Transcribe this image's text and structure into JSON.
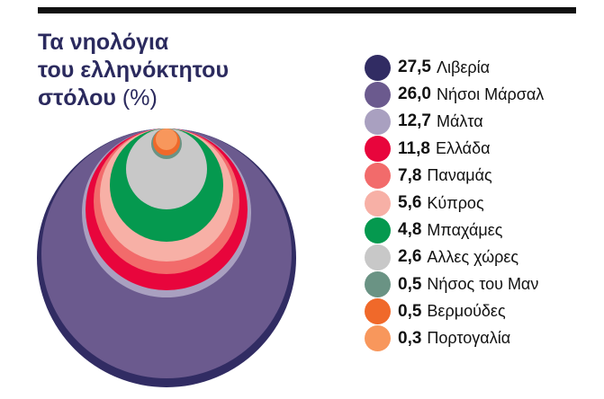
{
  "title": {
    "line1": "Τα νηολόγια",
    "line2": "του ελληνόκτητου",
    "line3": "στόλου",
    "line3_suffix": "(%)"
  },
  "chart_data": {
    "type": "nested-circles",
    "title": "Τα νηολόγια του ελληνόκτητου στόλου (%)",
    "legend_position": "right",
    "items": [
      {
        "label": "Λιβερία",
        "value": 27.5,
        "display": "27,5",
        "color": "#312c63"
      },
      {
        "label": "Νήσοι Μάρσαλ",
        "value": 26.0,
        "display": "26,0",
        "color": "#6b5a8e"
      },
      {
        "label": "Μάλτα",
        "value": 12.7,
        "display": "12,7",
        "color": "#a9a0c0"
      },
      {
        "label": "Ελλάδα",
        "value": 11.8,
        "display": "11,8",
        "color": "#e8053c"
      },
      {
        "label": "Παναμάς",
        "value": 7.8,
        "display": "7,8",
        "color": "#f26b6b"
      },
      {
        "label": "Κύπρος",
        "value": 5.6,
        "display": "5,6",
        "color": "#f7b0a6"
      },
      {
        "label": "Μπαχάμες",
        "value": 4.8,
        "display": "4,8",
        "color": "#05994f"
      },
      {
        "label": "Αλλες χώρες",
        "value": 2.6,
        "display": "2,6",
        "color": "#c8c8c8"
      },
      {
        "label": "Νήσος του Μαν",
        "value": 0.5,
        "display": "0,5",
        "color": "#6a9384"
      },
      {
        "label": "Βερμούδες",
        "value": 0.5,
        "display": "0,5",
        "color": "#f0692a"
      },
      {
        "label": "Πορτογαλία",
        "value": 0.3,
        "display": "0,3",
        "color": "#f8975c"
      }
    ]
  }
}
